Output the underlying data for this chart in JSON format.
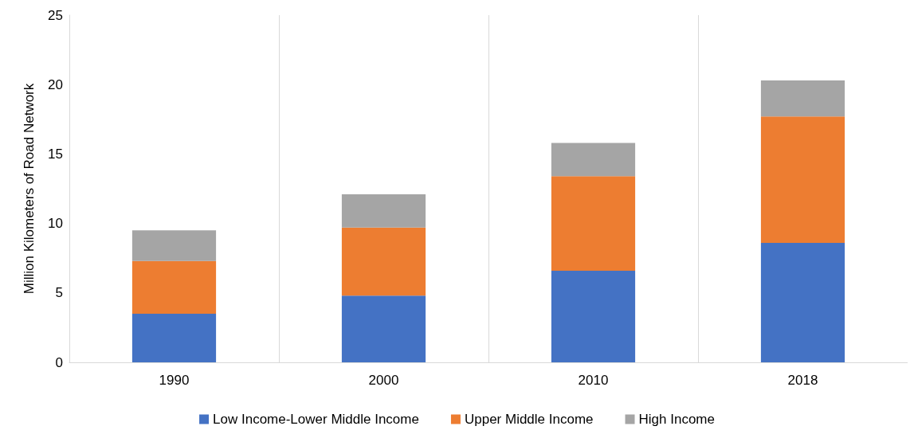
{
  "chart_data": {
    "type": "bar",
    "stacked": true,
    "ylabel": "Million Kilometers of Road Network",
    "categories": [
      "1990",
      "2000",
      "2010",
      "2018"
    ],
    "series": [
      {
        "name": "Low Income-Lower Middle Income",
        "color": "#4472c4",
        "values": [
          3.5,
          4.8,
          6.6,
          8.6
        ]
      },
      {
        "name": "Upper Middle Income",
        "color": "#ed7d31",
        "values": [
          3.8,
          4.9,
          6.8,
          9.1
        ]
      },
      {
        "name": "High Income",
        "color": "#a5a5a5",
        "values": [
          2.2,
          2.4,
          2.4,
          2.6
        ]
      }
    ],
    "ylim": [
      0,
      25
    ],
    "yticks": [
      0,
      5,
      10,
      15,
      20,
      25
    ],
    "grid": "x",
    "legend": "bottom"
  }
}
